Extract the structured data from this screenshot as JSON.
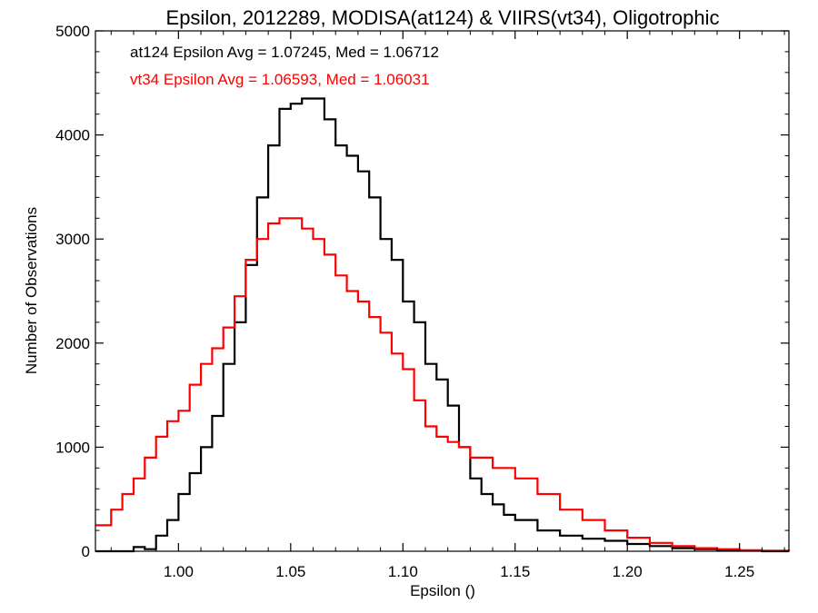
{
  "chart_data": {
    "type": "line",
    "title": "Epsilon, 2012289, MODISA(at124) & VIIRS(vt34), Oligotrophic",
    "xlabel": "Epsilon ()",
    "ylabel": "Number of Observations",
    "xlim": [
      0.963,
      1.272
    ],
    "ylim": [
      0,
      5000
    ],
    "xticks": [
      "1.00",
      "1.05",
      "1.10",
      "1.15",
      "1.20",
      "1.25"
    ],
    "yticks": [
      "0",
      "1000",
      "2000",
      "3000",
      "4000",
      "5000"
    ],
    "annotations": [
      {
        "text": "at124 Epsilon Avg = 1.07245, Med = 1.06712",
        "color": "#000000"
      },
      {
        "text": "vt34 Epsilon Avg = 1.06593, Med = 1.06031",
        "color": "#ff0000"
      }
    ],
    "series": [
      {
        "color": "#000000",
        "x": [
          0.963,
          0.97,
          0.975,
          0.98,
          0.985,
          0.99,
          0.995,
          1.0,
          1.005,
          1.01,
          1.015,
          1.02,
          1.025,
          1.03,
          1.035,
          1.04,
          1.045,
          1.05,
          1.055,
          1.06,
          1.065,
          1.07,
          1.075,
          1.08,
          1.085,
          1.09,
          1.095,
          1.1,
          1.105,
          1.11,
          1.115,
          1.12,
          1.125,
          1.13,
          1.135,
          1.14,
          1.145,
          1.15,
          1.16,
          1.17,
          1.18,
          1.19,
          1.2,
          1.21,
          1.22,
          1.23,
          1.24,
          1.25,
          1.26,
          1.272
        ],
        "y": [
          0,
          0,
          0,
          40,
          20,
          150,
          300,
          550,
          750,
          1000,
          1300,
          1800,
          2200,
          2750,
          3400,
          3900,
          4250,
          4300,
          4350,
          4350,
          4150,
          3900,
          3800,
          3650,
          3400,
          3000,
          2800,
          2400,
          2200,
          1800,
          1650,
          1400,
          1000,
          700,
          550,
          450,
          350,
          300,
          200,
          150,
          120,
          100,
          70,
          50,
          30,
          20,
          10,
          5,
          0,
          0
        ]
      },
      {
        "color": "#ff0000",
        "x": [
          0.963,
          0.97,
          0.975,
          0.98,
          0.985,
          0.99,
          0.995,
          1.0,
          1.005,
          1.01,
          1.015,
          1.02,
          1.025,
          1.03,
          1.035,
          1.04,
          1.045,
          1.05,
          1.055,
          1.06,
          1.065,
          1.07,
          1.075,
          1.08,
          1.085,
          1.09,
          1.095,
          1.1,
          1.105,
          1.11,
          1.115,
          1.12,
          1.125,
          1.13,
          1.14,
          1.15,
          1.16,
          1.17,
          1.18,
          1.19,
          1.2,
          1.21,
          1.22,
          1.23,
          1.24,
          1.25,
          1.26,
          1.272
        ],
        "y": [
          250,
          400,
          550,
          700,
          900,
          1100,
          1250,
          1350,
          1600,
          1800,
          1950,
          2150,
          2450,
          2800,
          3000,
          3150,
          3200,
          3200,
          3100,
          3000,
          2850,
          2650,
          2500,
          2400,
          2250,
          2100,
          1900,
          1750,
          1450,
          1200,
          1100,
          1050,
          1000,
          900,
          800,
          700,
          550,
          400,
          300,
          200,
          130,
          80,
          50,
          30,
          20,
          10,
          5,
          0
        ]
      }
    ]
  }
}
